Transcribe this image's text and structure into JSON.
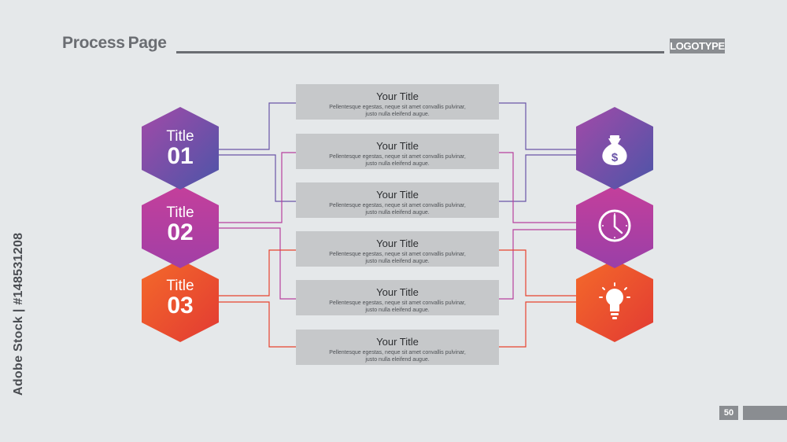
{
  "header": {
    "title_a": "Process",
    "title_b": "Page",
    "logo": "LOGOTYPE"
  },
  "side_id": "Adobe Stock | #148531208",
  "page_number": "50",
  "steps": [
    {
      "label": "Title",
      "number": "01",
      "color_top": "#a24aa8",
      "color_bottom": "#5e4fa3"
    },
    {
      "label": "Title",
      "number": "02",
      "color_top": "#c2409c",
      "color_bottom": "#9a3fa8"
    },
    {
      "label": "Title",
      "number": "03",
      "color_top": "#e8432f",
      "color_bottom": "#f0602a"
    }
  ],
  "boxes": [
    {
      "title": "Your Title",
      "text": "Pellentesque egestas, neque sit amet convallis pulvinar, justo nulla eleifend augue."
    },
    {
      "title": "Your Title",
      "text": "Pellentesque egestas, neque sit amet convallis pulvinar, justo nulla eleifend augue."
    },
    {
      "title": "Your Title",
      "text": "Pellentesque egestas, neque sit amet convallis pulvinar, justo nulla eleifend augue."
    },
    {
      "title": "Your Title",
      "text": "Pellentesque egestas, neque sit amet convallis pulvinar, justo nulla eleifend augue."
    },
    {
      "title": "Your Title",
      "text": "Pellentesque egestas, neque sit amet convallis pulvinar, justo nulla eleifend augue."
    },
    {
      "title": "Your Title",
      "text": "Pellentesque egestas, neque sit amet convallis pulvinar, justo nulla eleifend augue."
    }
  ],
  "icons": [
    "money-bag-icon",
    "clock-icon",
    "lightbulb-icon"
  ],
  "colors": {
    "purple": "#5e4fa3",
    "magenta": "#c23f9d",
    "red": "#e8432f",
    "orange": "#f06a2a"
  }
}
